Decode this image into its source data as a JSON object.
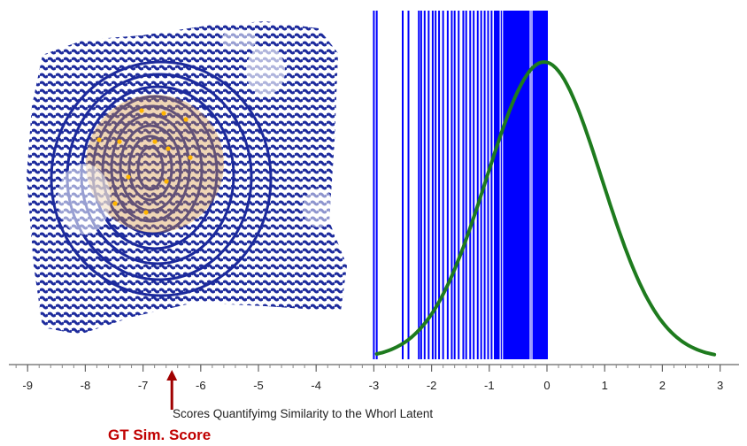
{
  "chart_data": {
    "type": "rug-with-density",
    "xlabel": "Scores Quantifyimg Similarity to the Whorl Latent",
    "xlim": [
      -9.2,
      3.0
    ],
    "ticks": [
      -9,
      -8,
      -7,
      -6,
      -5,
      -4,
      -3,
      -2,
      -1,
      0,
      1,
      2,
      3
    ],
    "tick_labels": [
      "-9",
      "-8",
      "-7",
      "-6",
      "-5",
      "-4",
      "-3",
      "-2",
      "-1",
      "0",
      "1",
      "2",
      "3"
    ],
    "minor_tick_step": 0.2,
    "rug_scores": [
      -3.0,
      -2.95,
      -2.5,
      -2.4,
      -2.22,
      -2.18,
      -2.12,
      -2.05,
      -1.98,
      -1.93,
      -1.87,
      -1.8,
      -1.72,
      -1.65,
      -1.6,
      -1.53,
      -1.45,
      -1.4,
      -1.33,
      -1.27,
      -1.2,
      -1.14,
      -1.08,
      -1.02,
      -0.96,
      -0.9,
      -0.84,
      -0.8,
      -0.76,
      -0.72,
      -0.68,
      -0.64,
      -0.6,
      -0.56,
      -0.52,
      -0.48,
      -0.44,
      -0.4,
      -0.36,
      -0.32,
      -0.28,
      -0.24,
      -0.2,
      -0.16,
      -0.12,
      -0.08,
      -0.04,
      0.0
    ],
    "rug_color": "#0000ff",
    "density": {
      "mean": -0.05,
      "sd": 1.0,
      "x_range": [
        -2.95,
        2.9
      ],
      "color": "#1e7b1e"
    },
    "gt_score": {
      "label": "GT Sim. Score",
      "x": -6.5,
      "color": "#a00000"
    },
    "inset_image": "whorl-fingerprint-latent"
  }
}
